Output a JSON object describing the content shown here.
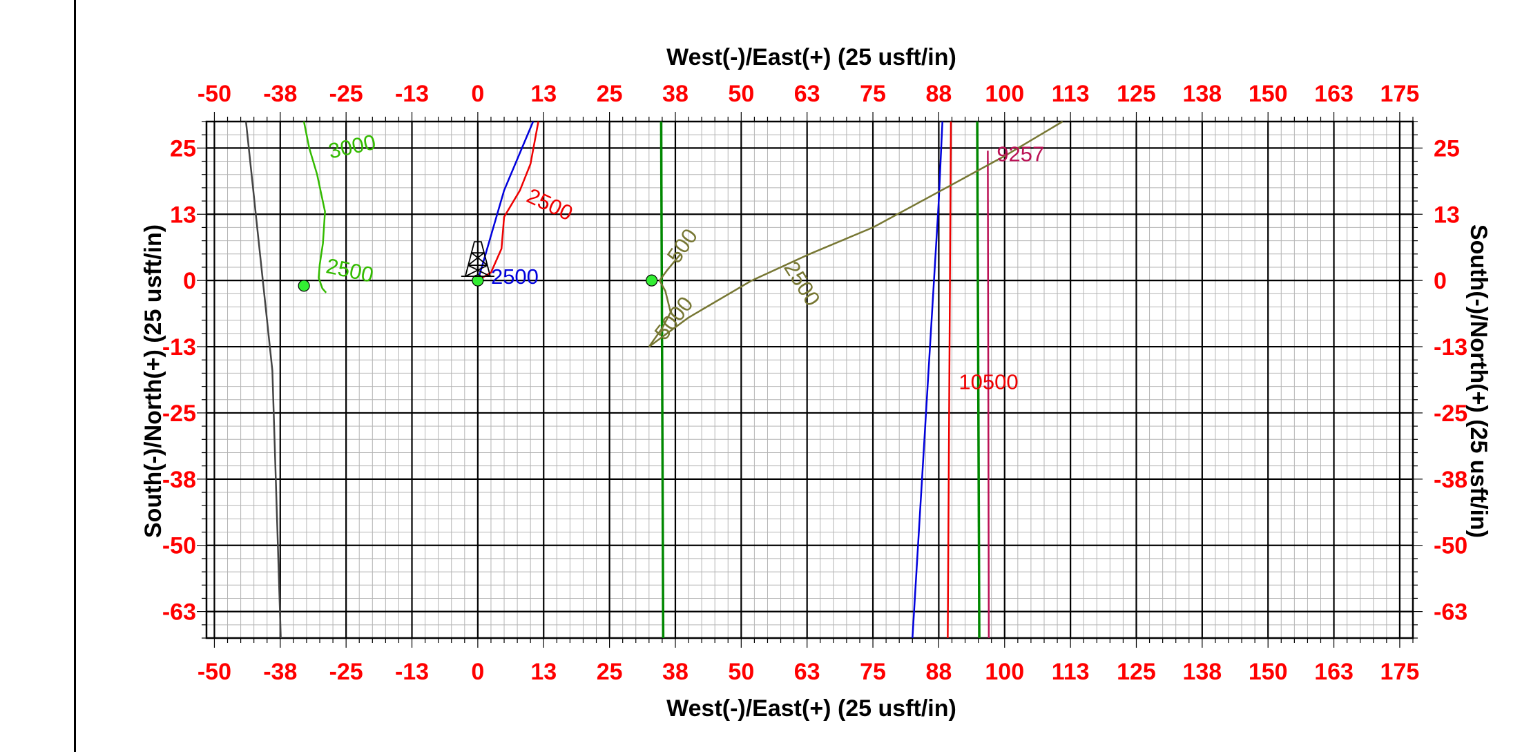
{
  "chart_data": {
    "type": "line",
    "xlabel_top": "West(-)/East(+) (25 usft/in)",
    "xlabel_bottom": "West(-)/East(+) (25 usft/in)",
    "ylabel_left": "South(-)/North(+) (25 usft/in)",
    "ylabel_right": "South(-)/North(+) (25 usft/in)",
    "xlim": [
      -51.5,
      177.5
    ],
    "ylim": [
      -67.5,
      30
    ],
    "grid": true,
    "x_ticks": [
      {
        "value": -50,
        "label": "-50"
      },
      {
        "value": -37.5,
        "label": "-38"
      },
      {
        "value": -25,
        "label": "-25"
      },
      {
        "value": -12.5,
        "label": "-13"
      },
      {
        "value": 0,
        "label": "0"
      },
      {
        "value": 12.5,
        "label": "13"
      },
      {
        "value": 25,
        "label": "25"
      },
      {
        "value": 37.5,
        "label": "38"
      },
      {
        "value": 50,
        "label": "50"
      },
      {
        "value": 62.5,
        "label": "63"
      },
      {
        "value": 75,
        "label": "75"
      },
      {
        "value": 87.5,
        "label": "88"
      },
      {
        "value": 100,
        "label": "100"
      },
      {
        "value": 112.5,
        "label": "113"
      },
      {
        "value": 125,
        "label": "125"
      },
      {
        "value": 137.5,
        "label": "138"
      },
      {
        "value": 150,
        "label": "150"
      },
      {
        "value": 162.5,
        "label": "163"
      },
      {
        "value": 175,
        "label": "175"
      }
    ],
    "y_ticks": [
      {
        "value": 25,
        "label": "25"
      },
      {
        "value": 12.5,
        "label": "13"
      },
      {
        "value": 0,
        "label": "0"
      },
      {
        "value": -12.5,
        "label": "-13"
      },
      {
        "value": -25,
        "label": "-25"
      },
      {
        "value": -37.5,
        "label": "-38"
      },
      {
        "value": -50,
        "label": "-50"
      },
      {
        "value": -62.5,
        "label": "-63"
      }
    ],
    "series": [
      {
        "color": "#444444",
        "points": [
          [
            -44,
            30
          ],
          [
            -39,
            -17
          ],
          [
            -37.4,
            -67.5
          ]
        ]
      },
      {
        "color": "#33bb00",
        "points": [
          [
            -33,
            30
          ],
          [
            -32,
            25
          ],
          [
            -30.5,
            20
          ],
          [
            -29,
            13
          ],
          [
            -29.4,
            7
          ],
          [
            -30,
            3
          ],
          [
            -30.2,
            0.5
          ],
          [
            -29.5,
            -1.5
          ],
          [
            -28.8,
            -2.3
          ]
        ]
      },
      {
        "color": "#0000dd",
        "points": [
          [
            0,
            0
          ],
          [
            1.2,
            4
          ],
          [
            5,
            17
          ],
          [
            10.5,
            30
          ]
        ]
      },
      {
        "color": "#0000dd",
        "points": [
          [
            82.5,
            -67.5
          ],
          [
            87.5,
            15
          ],
          [
            88.2,
            30
          ]
        ]
      },
      {
        "color": "#ee0000",
        "points": [
          [
            0,
            0
          ],
          [
            2.5,
            1.5
          ],
          [
            4.5,
            6
          ],
          [
            5,
            12
          ],
          [
            8,
            17
          ],
          [
            10,
            22
          ],
          [
            11.5,
            30
          ]
        ]
      },
      {
        "color": "#ee0000",
        "points": [
          [
            89.8,
            30
          ],
          [
            89.2,
            -67.5
          ]
        ]
      },
      {
        "color": "#008800",
        "points": [
          [
            34.8,
            30
          ],
          [
            35.2,
            -67.5
          ]
        ]
      },
      {
        "color": "#008800",
        "points": [
          [
            94.8,
            30
          ],
          [
            95.2,
            -67.5
          ]
        ]
      },
      {
        "color": "#bb1155",
        "points": [
          [
            96.8,
            24.5
          ],
          [
            97,
            -67.5
          ]
        ]
      },
      {
        "color": "#777733",
        "points": [
          [
            32.5,
            -12.5
          ],
          [
            40,
            -7
          ],
          [
            52,
            0
          ],
          [
            63,
            5
          ],
          [
            75,
            10
          ],
          [
            88,
            17
          ],
          [
            100,
            23.5
          ],
          [
            111,
            30
          ]
        ]
      },
      {
        "color": "#777733",
        "points": [
          [
            32.5,
            -12.5
          ],
          [
            35,
            -9
          ],
          [
            36.6,
            -6
          ],
          [
            35.6,
            -2
          ],
          [
            34.5,
            0
          ],
          [
            36,
            2
          ],
          [
            38.5,
            5
          ]
        ]
      }
    ],
    "markers": [
      {
        "x": -33,
        "y": -1,
        "color": "#33ee33"
      },
      {
        "x": 0,
        "y": 0,
        "color": "#33ee33"
      },
      {
        "x": 33,
        "y": 0,
        "color": "#33ee33"
      }
    ],
    "annotations": [
      {
        "text": "3000",
        "x": -28,
        "y": 23,
        "color": "#33bb00",
        "rotate": -12
      },
      {
        "text": "2500",
        "x": -29,
        "y": 1.5,
        "color": "#33bb00",
        "rotate": 12
      },
      {
        "text": "2500",
        "x": 2.5,
        "y": -0.6,
        "color": "#0000dd",
        "rotate": 0
      },
      {
        "text": "2500",
        "x": 9,
        "y": 15,
        "color": "#ee0000",
        "rotate": 25
      },
      {
        "text": "500",
        "x": 38,
        "y": 3,
        "color": "#777733",
        "rotate": -55
      },
      {
        "text": "5000",
        "x": 35.5,
        "y": -11.5,
        "color": "#777733",
        "rotate": -52
      },
      {
        "text": "2500",
        "x": 58,
        "y": 2.5,
        "color": "#777733",
        "rotate": 58
      },
      {
        "text": "10500",
        "x": 91.3,
        "y": -20.5,
        "color": "#ee0000",
        "rotate": 0
      },
      {
        "text": "9257",
        "x": 98.5,
        "y": 22.5,
        "color": "#bb1155",
        "rotate": 0
      }
    ],
    "rig_symbol": {
      "x": 0,
      "y": 0
    }
  }
}
